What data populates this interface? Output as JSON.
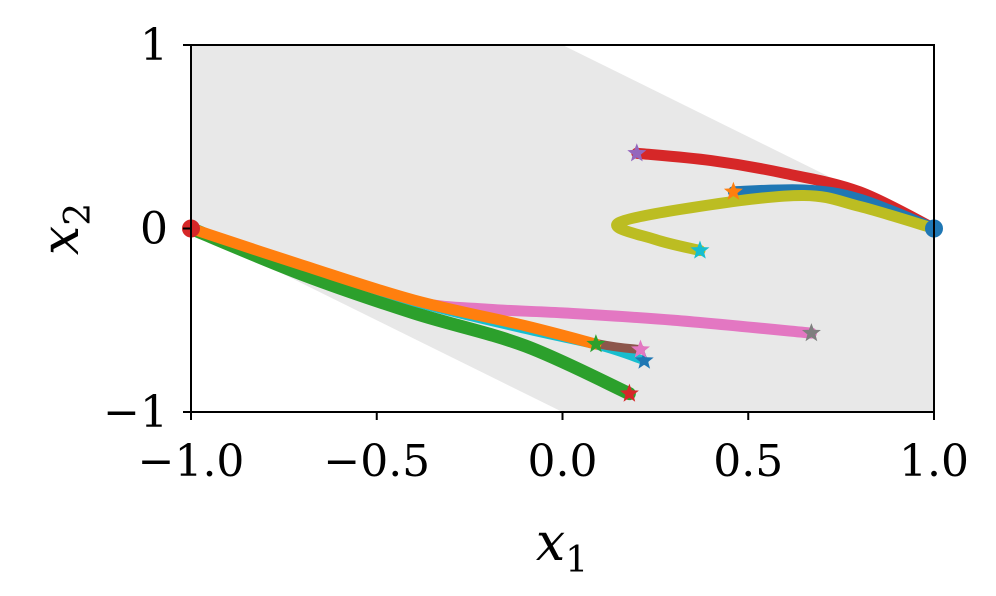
{
  "chart_data": {
    "type": "line",
    "title": "",
    "xlabel": {
      "base": "x",
      "sub": "1"
    },
    "ylabel": {
      "base": "x",
      "sub": "2"
    },
    "xlim": [
      -1.0,
      1.0
    ],
    "ylim": [
      -1.0,
      1.0
    ],
    "xticks": [
      -1.0,
      -0.5,
      0.0,
      0.5,
      1.0
    ],
    "xtick_labels": [
      "−1.0",
      "−0.5",
      "0.0",
      "0.5",
      "1.0"
    ],
    "yticks": [
      -1,
      0,
      1
    ],
    "ytick_labels": [
      "−1",
      "0",
      "1"
    ],
    "grid": false,
    "feasible_region": [
      [
        -1,
        0
      ],
      [
        0,
        -1
      ],
      [
        1,
        -1
      ],
      [
        1,
        0
      ],
      [
        0,
        1
      ],
      [
        -1,
        1
      ]
    ],
    "region_color": "#e8e8e8",
    "start_points": [
      {
        "x": -1.0,
        "y": 0.0,
        "color": "#d62728"
      },
      {
        "x": 1.0,
        "y": 0.0,
        "color": "#1f77b4"
      }
    ],
    "series": [
      {
        "color": "#d62728",
        "width": 11,
        "points": [
          [
            1.0,
            0.0
          ],
          [
            0.8,
            0.2
          ],
          [
            0.6,
            0.3
          ],
          [
            0.4,
            0.37
          ],
          [
            0.2,
            0.41
          ]
        ],
        "end_color": "#9467bd"
      },
      {
        "color": "#1f77b4",
        "width": 11,
        "points": [
          [
            1.0,
            0.0
          ],
          [
            0.8,
            0.16
          ],
          [
            0.65,
            0.21
          ],
          [
            0.46,
            0.2
          ]
        ],
        "end_color": "#ff7f0e"
      },
      {
        "color": "#bcbd22",
        "width": 11,
        "points": [
          [
            1.0,
            0.0
          ],
          [
            0.8,
            0.12
          ],
          [
            0.65,
            0.18
          ],
          [
            0.4,
            0.13
          ],
          [
            0.15,
            0.03
          ],
          [
            0.25,
            -0.06
          ],
          [
            0.37,
            -0.12
          ]
        ],
        "end_color": "#17becf"
      },
      {
        "color": "#e377c2",
        "width": 11,
        "points": [
          [
            -1.0,
            0.0
          ],
          [
            -0.7,
            -0.24
          ],
          [
            -0.4,
            -0.4
          ],
          [
            -0.2,
            -0.44
          ],
          [
            0.0,
            -0.46
          ],
          [
            0.3,
            -0.5
          ],
          [
            0.67,
            -0.57
          ]
        ],
        "end_color": "#7f7f7f"
      },
      {
        "color": "#2ca02c",
        "width": 13,
        "points": [
          [
            -1.0,
            0.0
          ],
          [
            -0.7,
            -0.25
          ],
          [
            -0.4,
            -0.46
          ],
          [
            -0.1,
            -0.64
          ],
          [
            0.18,
            -0.9
          ]
        ],
        "end_color": "#d62728"
      },
      {
        "color": "#17becf",
        "width": 9,
        "points": [
          [
            -1.0,
            0.0
          ],
          [
            -0.7,
            -0.2
          ],
          [
            -0.4,
            -0.4
          ],
          [
            -0.1,
            -0.55
          ],
          [
            0.1,
            -0.64
          ],
          [
            0.22,
            -0.72
          ]
        ],
        "end_color": "#1f77b4"
      },
      {
        "color": "#8c564b",
        "width": 9,
        "points": [
          [
            -1.0,
            0.0
          ],
          [
            -0.7,
            -0.2
          ],
          [
            -0.4,
            -0.39
          ],
          [
            -0.1,
            -0.53
          ],
          [
            0.1,
            -0.63
          ],
          [
            0.21,
            -0.66
          ]
        ],
        "end_color": "#e377c2"
      },
      {
        "color": "#ff7f0e",
        "width": 11,
        "points": [
          [
            -1.0,
            0.0
          ],
          [
            -0.7,
            -0.2
          ],
          [
            -0.4,
            -0.39
          ],
          [
            -0.1,
            -0.53
          ],
          [
            0.09,
            -0.63
          ]
        ],
        "end_color": "#2ca02c"
      }
    ]
  }
}
